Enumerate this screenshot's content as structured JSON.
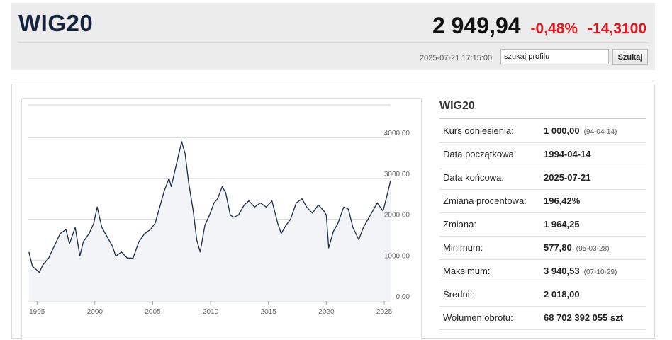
{
  "header": {
    "title": "WIG20",
    "price": "2 949,94",
    "change_pct": "-0,48%",
    "change_abs": "-14,3100",
    "timestamp": "2025-07-21 17:15:00",
    "search_value": "szukaj profilu",
    "search_button": "Szukaj",
    "negative_color": "#e0191e"
  },
  "stats": {
    "title": "WIG20",
    "rows": [
      {
        "label": "Kurs odniesienia:",
        "value": "1 000,00",
        "extra": "(94-04-14)"
      },
      {
        "label": "Data początkowa:",
        "value": "1994-04-14",
        "extra": ""
      },
      {
        "label": "Data końcowa:",
        "value": "2025-07-21",
        "extra": ""
      },
      {
        "label": "Zmiana procentowa:",
        "value": "196,42%",
        "extra": ""
      },
      {
        "label": "Zmiana:",
        "value": "1 964,25",
        "extra": ""
      },
      {
        "label": "Minimum:",
        "value": "577,80",
        "extra": "(95-03-28)"
      },
      {
        "label": "Maksimum:",
        "value": "3 940,53",
        "extra": "(07-10-29)"
      },
      {
        "label": "Średni:",
        "value": "2 018,00",
        "extra": ""
      },
      {
        "label": "Wolumen obrotu:",
        "value": "68 702 392 055 szt",
        "extra": ""
      }
    ]
  },
  "chart_data": {
    "type": "area",
    "title": "",
    "xlabel": "",
    "ylabel": "",
    "x_ticks": [
      "1995",
      "2000",
      "2005",
      "2010",
      "2015",
      "2020",
      "2025"
    ],
    "y_ticks": [
      "0,00",
      "1000,00",
      "2000,00",
      "3000,00",
      "4000,00"
    ],
    "x_range": [
      1994.25,
      2025.55
    ],
    "ylim": [
      0,
      4800
    ],
    "grid": true,
    "line_color": "#1b2a47",
    "fill_color": "#f2f4f7",
    "x": [
      1994.3,
      1994.6,
      1995.2,
      1995.5,
      1996.0,
      1996.5,
      1997.0,
      1997.5,
      1997.8,
      1998.3,
      1998.7,
      1999.0,
      1999.5,
      1999.9,
      2000.2,
      2000.6,
      2001.0,
      2001.5,
      2001.8,
      2002.3,
      2002.8,
      2003.3,
      2003.8,
      2004.3,
      2004.8,
      2005.2,
      2005.6,
      2006.0,
      2006.4,
      2006.6,
      2007.0,
      2007.5,
      2007.8,
      2008.1,
      2008.5,
      2008.8,
      2009.1,
      2009.5,
      2009.9,
      2010.3,
      2010.6,
      2011.0,
      2011.3,
      2011.7,
      2012.0,
      2012.4,
      2012.9,
      2013.3,
      2013.8,
      2014.3,
      2014.8,
      2015.3,
      2015.8,
      2016.1,
      2016.5,
      2016.9,
      2017.4,
      2017.9,
      2018.3,
      2018.8,
      2019.3,
      2019.8,
      2020.0,
      2020.2,
      2020.6,
      2021.0,
      2021.5,
      2021.9,
      2022.3,
      2022.8,
      2023.2,
      2023.6,
      2024.0,
      2024.4,
      2024.9,
      2025.3,
      2025.55
    ],
    "values": [
      1200,
      850,
      700,
      880,
      1050,
      1350,
      1650,
      1750,
      1400,
      1800,
      1100,
      1450,
      1650,
      1900,
      2300,
      1800,
      1600,
      1350,
      1100,
      1200,
      1050,
      1050,
      1450,
      1650,
      1750,
      1900,
      2300,
      2700,
      3000,
      2800,
      3300,
      3900,
      3600,
      2900,
      2200,
      1500,
      1200,
      1850,
      2100,
      2400,
      2500,
      2800,
      2650,
      2100,
      2050,
      2100,
      2350,
      2450,
      2300,
      2400,
      2300,
      2450,
      1900,
      1650,
      1850,
      2000,
      2400,
      2500,
      2300,
      2150,
      2350,
      2200,
      2100,
      1300,
      1700,
      1900,
      2300,
      2250,
      1800,
      1500,
      1800,
      2000,
      2200,
      2400,
      2200,
      2650,
      2950
    ]
  }
}
